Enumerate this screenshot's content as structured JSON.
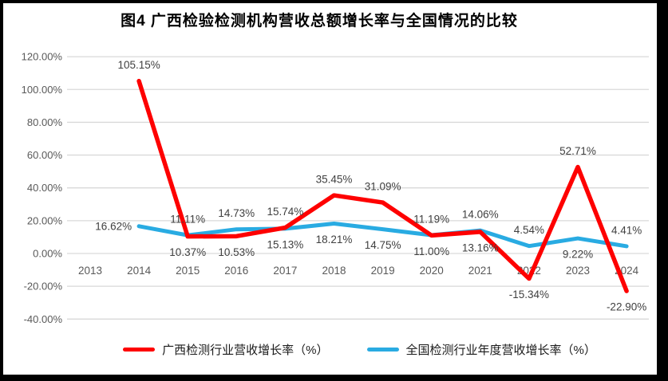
{
  "title": "图4 广西检验检测机构营收总额增长率与全国情况的比较",
  "colors": {
    "background": "#FFFFFF",
    "border": "#000000",
    "gridline": "#D9D9D9",
    "axis_text": "#595959",
    "data_label_text": "#3F3F3F",
    "guangxi_red": "#FE0000",
    "national_blue": "#29ABE2"
  },
  "chart_data": {
    "type": "line",
    "title": "图4 广西检验检测机构营收总额增长率与全国情况的比较",
    "categories": [
      "2013",
      "2014",
      "2015",
      "2016",
      "2017",
      "2018",
      "2019",
      "2020",
      "2021",
      "2022",
      "2023",
      "2024"
    ],
    "series": [
      {
        "name": "全国检测行业年度营收增长率（%）",
        "color": "#29ABE2",
        "values": [
          null,
          16.62,
          11.11,
          14.73,
          15.13,
          18.21,
          14.75,
          11.19,
          14.06,
          4.54,
          9.22,
          4.41
        ],
        "label_side": [
          null,
          "left",
          "above",
          "above",
          "below",
          "below",
          "below",
          "above",
          "above",
          "above",
          "below",
          "above"
        ]
      },
      {
        "name": "广西检测行业营收增长率（%）",
        "color": "#FE0000",
        "values": [
          null,
          105.15,
          10.37,
          10.53,
          15.74,
          35.45,
          31.09,
          11.0,
          13.16,
          -15.34,
          52.71,
          -22.9
        ],
        "label_side": [
          null,
          "above",
          "below",
          "below",
          "above",
          "above",
          "above",
          "below",
          "below",
          "below",
          "above",
          "below"
        ]
      }
    ],
    "y_axis": {
      "min": -40,
      "max": 120,
      "step": 20,
      "tick_format": "0.00%"
    },
    "x_axis_labels": [
      "2013",
      "2014",
      "2015",
      "2016",
      "2017",
      "2018",
      "2019",
      "2020",
      "2021",
      "2022",
      "2023",
      "2024"
    ],
    "grid": true,
    "legend_position": "bottom",
    "data_labels_format": "0.00%"
  },
  "legend": {
    "items": [
      {
        "label": "广西检测行业营收增长率（%）"
      },
      {
        "label": "全国检测行业年度营收增长率（%）"
      }
    ]
  }
}
